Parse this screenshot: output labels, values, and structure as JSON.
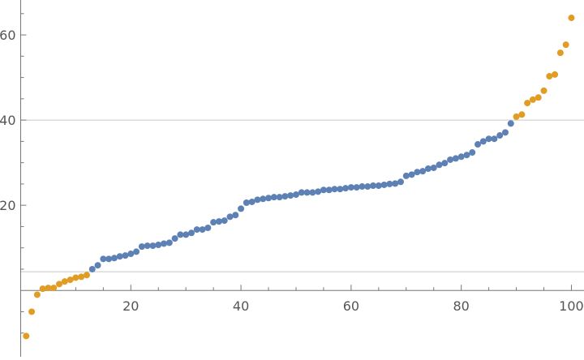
{
  "chart_data": {
    "type": "scatter",
    "title": "",
    "xlabel": "",
    "ylabel": "",
    "xlim": [
      0,
      101.7
    ],
    "ylim": [
      -15,
      68.2
    ],
    "x_ticks": [
      20,
      40,
      60,
      80,
      100
    ],
    "y_ticks": [
      20,
      40,
      60
    ],
    "gridlines_y": [
      4.4,
      40
    ],
    "colors": {
      "inner": "#5e81b5",
      "outer": "#e19c24",
      "grid": "#c8c8c8",
      "axis": "#777777"
    },
    "series": [
      {
        "color_key": "outer",
        "x": [
          1,
          2,
          3,
          4,
          5,
          6,
          7,
          8,
          9,
          10,
          11,
          12,
          90,
          91,
          92,
          93,
          94,
          95,
          96,
          97,
          98,
          99,
          100
        ],
        "y": [
          -10.7,
          -5.0,
          -1.0,
          0.4,
          0.6,
          0.6,
          1.5,
          2.1,
          2.5,
          3.0,
          3.2,
          3.6,
          40.8,
          41.3,
          44.0,
          44.8,
          45.3,
          46.9,
          50.3,
          50.7,
          55.8,
          57.7,
          64.0
        ]
      },
      {
        "color_key": "inner",
        "x": [
          13,
          14,
          15,
          16,
          17,
          18,
          19,
          20,
          21,
          22,
          23,
          24,
          25,
          26,
          27,
          28,
          29,
          30,
          31,
          32,
          33,
          34,
          35,
          36,
          37,
          38,
          39,
          40,
          41,
          42,
          43,
          44,
          45,
          46,
          47,
          48,
          49,
          50,
          51,
          52,
          53,
          54,
          55,
          56,
          57,
          58,
          59,
          60,
          61,
          62,
          63,
          64,
          65,
          66,
          67,
          68,
          69,
          70,
          71,
          72,
          73,
          74,
          75,
          76,
          77,
          78,
          79,
          80,
          81,
          82,
          83,
          84,
          85,
          86,
          87,
          88,
          89
        ],
        "y": [
          5.0,
          5.9,
          7.4,
          7.4,
          7.6,
          8.0,
          8.2,
          8.6,
          9.1,
          10.3,
          10.5,
          10.5,
          10.7,
          11.0,
          11.2,
          12.2,
          13.1,
          13.1,
          13.5,
          14.3,
          14.3,
          14.7,
          16.0,
          16.2,
          16.4,
          17.3,
          17.7,
          19.2,
          20.6,
          20.8,
          21.3,
          21.5,
          21.7,
          21.9,
          21.9,
          22.1,
          22.3,
          22.5,
          23.0,
          23.0,
          23.0,
          23.2,
          23.6,
          23.6,
          23.8,
          23.8,
          24.0,
          24.2,
          24.2,
          24.4,
          24.4,
          24.6,
          24.6,
          24.8,
          25.0,
          25.1,
          25.5,
          26.9,
          27.2,
          27.8,
          28.0,
          28.6,
          28.8,
          29.5,
          29.9,
          30.7,
          31.0,
          31.4,
          31.8,
          32.4,
          34.3,
          35.0,
          35.6,
          35.6,
          36.4,
          37.1,
          39.2
        ]
      }
    ]
  }
}
